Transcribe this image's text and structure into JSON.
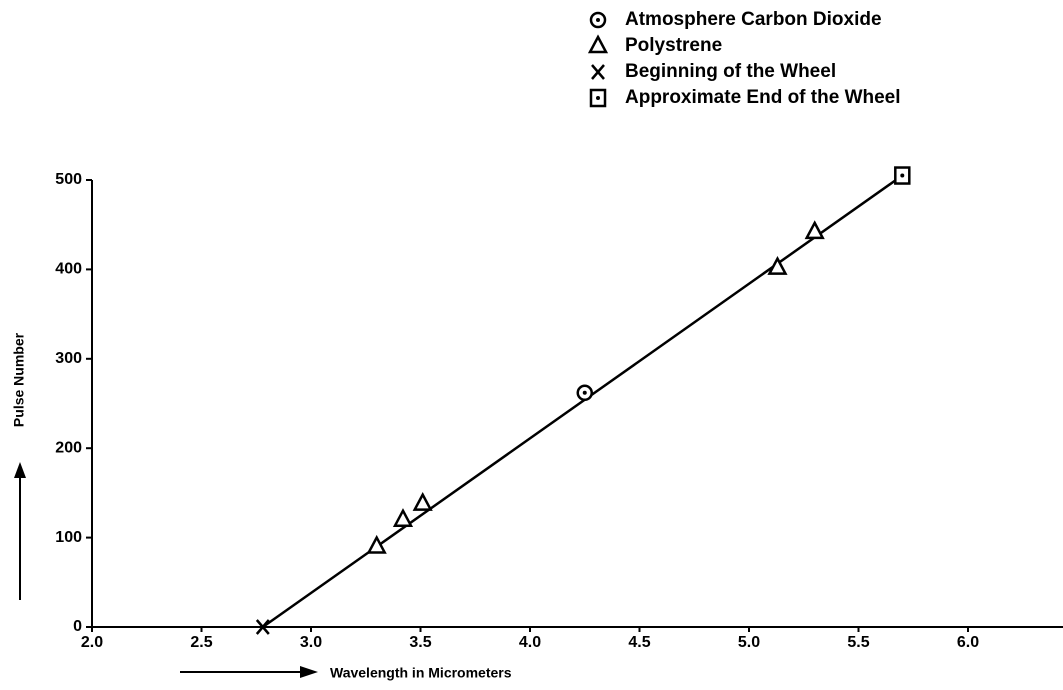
{
  "chart_data": {
    "type": "scatter",
    "x_label": "Wavelength in Micrometers",
    "y_label": "Pulse Number",
    "xlim": [
      2.0,
      6.0
    ],
    "ylim": [
      0,
      500
    ],
    "xticks": [
      {
        "value": 2,
        "label": "2.0"
      },
      2.5,
      {
        "value": 3,
        "label": "3.0"
      },
      3.5,
      {
        "value": 4,
        "label": "4.0"
      },
      4.5,
      {
        "value": 5,
        "label": "5.0"
      },
      5.5,
      {
        "value": 6,
        "label": "6.0"
      }
    ],
    "yticks": [
      0,
      100,
      200,
      300,
      400,
      500
    ],
    "series": [
      {
        "name": "Atmosphere Carbon Dioxide",
        "marker": "circle-dot",
        "color": "#000000",
        "x": [
          4.25
        ],
        "values": [
          262
        ]
      },
      {
        "name": "Polystrene",
        "marker": "triangle",
        "color": "#000000",
        "x": [
          3.3,
          3.42,
          3.51,
          5.13,
          5.3
        ],
        "values": [
          90,
          120,
          138,
          402,
          442
        ]
      },
      {
        "name": "Beginning of the Wheel",
        "marker": "x",
        "color": "#000000",
        "x": [
          2.78
        ],
        "values": [
          0
        ]
      },
      {
        "name": "Approximate End of the Wheel",
        "marker": "square-dot",
        "color": "#000000",
        "x": [
          5.7
        ],
        "values": [
          505
        ]
      }
    ],
    "fit_line": {
      "x": [
        2.78,
        5.7
      ],
      "values": [
        0,
        505
      ],
      "color": "#000000"
    }
  }
}
